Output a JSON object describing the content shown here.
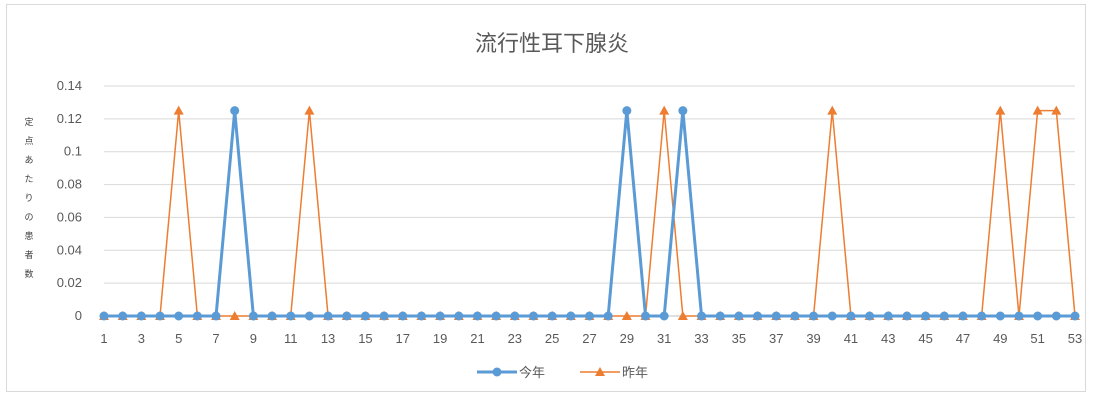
{
  "chart_data": {
    "type": "line",
    "title": "流行性耳下腺炎",
    "ylabel": "定点あたりの患者数",
    "ylim": [
      0,
      0.14
    ],
    "yticks": [
      0,
      0.02,
      0.04,
      0.06,
      0.08,
      0.1,
      0.12,
      0.14
    ],
    "ytick_labels": [
      "0",
      "0.02",
      "0.04",
      "0.06",
      "0.08",
      "0.1",
      "0.12",
      "0.14"
    ],
    "x": [
      1,
      2,
      3,
      4,
      5,
      6,
      7,
      8,
      9,
      10,
      11,
      12,
      13,
      14,
      15,
      16,
      17,
      18,
      19,
      20,
      21,
      22,
      23,
      24,
      25,
      26,
      27,
      28,
      29,
      30,
      31,
      32,
      33,
      34,
      35,
      36,
      37,
      38,
      39,
      40,
      41,
      42,
      43,
      44,
      45,
      46,
      47,
      48,
      49,
      50,
      51,
      52,
      53
    ],
    "xtick_labels": [
      "1",
      "3",
      "5",
      "7",
      "9",
      "11",
      "13",
      "15",
      "17",
      "19",
      "21",
      "23",
      "25",
      "27",
      "29",
      "31",
      "33",
      "35",
      "37",
      "39",
      "41",
      "43",
      "45",
      "47",
      "49",
      "51",
      "53"
    ],
    "grid": true,
    "legend_position": "bottom",
    "series": [
      {
        "name": "今年",
        "color": "#5b9bd5",
        "marker": "circle",
        "values": [
          0,
          0,
          0,
          0,
          0,
          0,
          0,
          0.125,
          0,
          0,
          0,
          0,
          0,
          0,
          0,
          0,
          0,
          0,
          0,
          0,
          0,
          0,
          0,
          0,
          0,
          0,
          0,
          0,
          0.125,
          0,
          0,
          0.125,
          0,
          0,
          0,
          0,
          0,
          0,
          0,
          0,
          0,
          0,
          0,
          0,
          0,
          0,
          0,
          0,
          0,
          0,
          0,
          0,
          0
        ]
      },
      {
        "name": "昨年",
        "color": "#ed7d31",
        "marker": "triangle",
        "values": [
          0,
          0,
          0,
          0,
          0.125,
          0,
          0,
          0,
          0,
          0,
          0,
          0.125,
          0,
          0,
          0,
          0,
          0,
          0,
          0,
          0,
          0,
          0,
          0,
          0,
          0,
          0,
          0,
          0,
          0,
          0,
          0.125,
          0,
          0,
          0,
          0,
          0,
          0,
          0,
          0,
          0.125,
          0,
          0,
          0,
          0,
          0,
          0,
          0,
          0,
          0.125,
          0,
          0.125,
          0.125,
          0
        ]
      }
    ]
  }
}
